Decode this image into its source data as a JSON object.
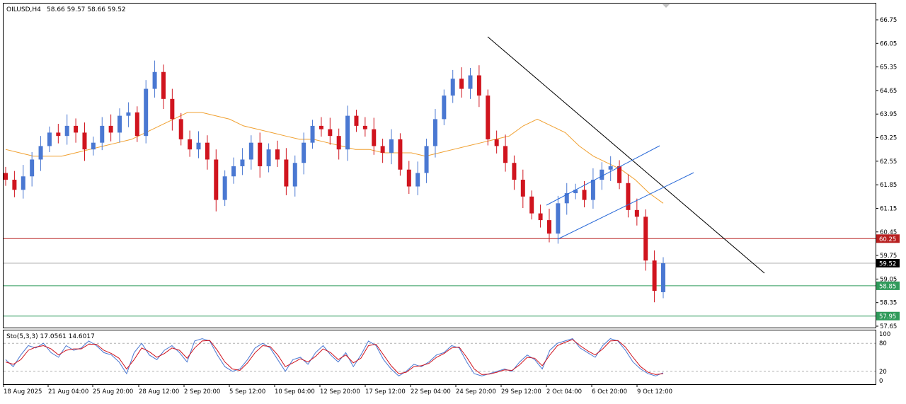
{
  "header": {
    "symbol_label": "OILUSD,H4",
    "ohlc_label": "58.66 59.57 58.66 59.52"
  },
  "colors": {
    "background": "#ffffff",
    "frame": "#000000",
    "bull": "#4a78d2",
    "bear": "#d0141e",
    "ma": "#f0a030",
    "resistance": "#b82020",
    "support": "#2f9a5a",
    "current_price": "#b0b0b0",
    "channel": "#2a6ad8",
    "trendline": "#000000",
    "stoch_main": "#4a78d2",
    "stoch_signal": "#d0141e"
  },
  "chart_data": [
    {
      "type": "candlestick",
      "timeframe": "H4",
      "y_axis_ticks": [
        "66.75",
        "66.05",
        "65.35",
        "64.65",
        "63.95",
        "63.25",
        "62.55",
        "61.85",
        "61.15",
        "60.45",
        "59.75",
        "59.05",
        "58.35",
        "57.65"
      ],
      "ylim": [
        57.65,
        66.95
      ],
      "x_axis_ticks": [
        "18 Aug 2025",
        "21 Aug 04:00",
        "25 Aug 20:00",
        "28 Aug 12:00",
        "2 Sep 20:00",
        "5 Sep 12:00",
        "10 Sep 04:00",
        "12 Sep 20:00",
        "17 Sep 12:00",
        "22 Sep 04:00",
        "24 Sep 20:00",
        "29 Sep 12:00",
        "2 Oct 04:00",
        "6 Oct 20:00",
        "9 Oct 12:00"
      ],
      "price_path_closes": [
        62.0,
        61.7,
        62.1,
        62.6,
        63.0,
        63.4,
        63.3,
        63.6,
        63.4,
        62.9,
        63.1,
        63.6,
        63.4,
        63.9,
        64.0,
        63.3,
        64.7,
        65.2,
        64.4,
        63.8,
        63.2,
        62.9,
        63.1,
        62.6,
        61.4,
        62.1,
        62.4,
        62.6,
        63.1,
        62.4,
        62.9,
        62.6,
        61.8,
        62.5,
        63.1,
        63.6,
        63.5,
        63.3,
        62.9,
        63.9,
        63.6,
        63.5,
        63.0,
        62.8,
        63.2,
        62.3,
        61.8,
        62.2,
        63.0,
        63.8,
        64.5,
        65.0,
        64.7,
        65.1,
        64.5,
        63.2,
        63.0,
        62.5,
        62.0,
        61.5,
        61.0,
        60.8,
        60.4,
        61.3,
        61.6,
        61.7,
        61.4,
        62.0,
        62.3,
        62.4,
        61.9,
        61.1,
        60.9,
        59.6,
        58.7,
        59.5
      ],
      "price_path_ohlc_last": {
        "open": 58.66,
        "high": 59.57,
        "low": 58.66,
        "close": 59.52
      },
      "moving_average": [
        {
          "period_label": "MA",
          "values": [
            62.9,
            62.8,
            62.7,
            62.7,
            62.7,
            62.8,
            62.9,
            63.0,
            63.1,
            63.2,
            63.4,
            63.6,
            63.8,
            64.0,
            64.0,
            63.9,
            63.8,
            63.6,
            63.5,
            63.4,
            63.3,
            63.2,
            63.2,
            63.1,
            63.0,
            62.9,
            62.9,
            62.8,
            62.8,
            62.8,
            62.7,
            62.8,
            62.9,
            63.0,
            63.1,
            63.2,
            63.3,
            63.6,
            63.8,
            63.6,
            63.4,
            63.0,
            62.7,
            62.5,
            62.3,
            62.0,
            61.6,
            61.3
          ]
        }
      ],
      "horizontal_levels": [
        {
          "name": "resistance",
          "value": 60.25,
          "label": "60.25"
        },
        {
          "name": "current-price",
          "value": 59.52,
          "label": "59.52"
        },
        {
          "name": "support-1",
          "value": 58.85,
          "label": "58.85"
        },
        {
          "name": "support-2",
          "value": 57.95,
          "label": "57.95"
        }
      ],
      "grid": false,
      "legend": "none"
    },
    {
      "type": "line",
      "indicator_label": "Sto(5,3,3) 17.0561 14.6017",
      "y_axis_ticks": [
        "100",
        "80",
        "20",
        "0"
      ],
      "ylim": [
        0,
        100
      ],
      "levels": [
        80,
        20
      ],
      "series": [
        {
          "values": [
            45,
            30,
            55,
            75,
            70,
            80,
            60,
            50,
            75,
            65,
            70,
            85,
            75,
            60,
            55,
            40,
            15,
            60,
            80,
            55,
            45,
            65,
            75,
            60,
            40,
            85,
            90,
            85,
            55,
            30,
            20,
            25,
            45,
            70,
            80,
            70,
            45,
            20,
            45,
            50,
            35,
            60,
            75,
            55,
            40,
            60,
            30,
            55,
            85,
            75,
            45,
            25,
            10,
            20,
            35,
            30,
            40,
            55,
            60,
            75,
            70,
            40,
            15,
            10,
            15,
            20,
            25,
            20,
            40,
            55,
            45,
            25,
            65,
            80,
            85,
            90,
            70,
            60,
            50,
            75,
            90,
            85,
            65,
            40,
            25,
            15,
            10,
            17
          ]
        },
        {
          "values": [
            40,
            35,
            45,
            65,
            72,
            75,
            68,
            55,
            65,
            68,
            68,
            78,
            78,
            65,
            58,
            48,
            25,
            45,
            70,
            62,
            50,
            58,
            70,
            65,
            48,
            70,
            85,
            86,
            65,
            40,
            25,
            22,
            38,
            60,
            75,
            73,
            55,
            30,
            38,
            47,
            40,
            52,
            68,
            60,
            45,
            55,
            38,
            48,
            75,
            78,
            55,
            32,
            15,
            18,
            30,
            32,
            37,
            50,
            58,
            70,
            72,
            50,
            25,
            13,
            14,
            18,
            23,
            22,
            34,
            50,
            48,
            32,
            55,
            75,
            82,
            88,
            75,
            64,
            55,
            68,
            85,
            86,
            72,
            50,
            30,
            18,
            13,
            15
          ]
        }
      ],
      "legend": "none"
    }
  ]
}
